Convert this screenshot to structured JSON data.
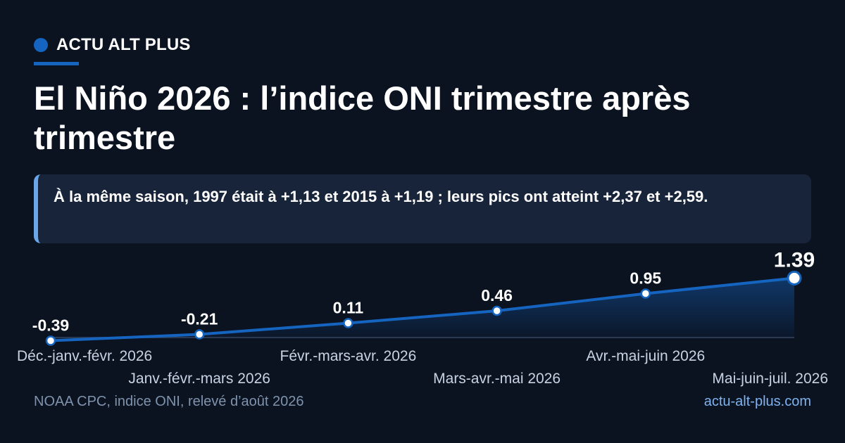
{
  "brand": {
    "name": "ACTU ALT PLUS",
    "accent_color": "#1565c0"
  },
  "title": "El Niño 2026 : l’indice ONI trimestre après trimestre",
  "callout": "À la même saison, 1997 était à +1,13 et 2015 à +1,19 ; leurs pics ont atteint +2,37 et +2,59.",
  "footer": {
    "source": "NOAA CPC, indice ONI, relevé d’août 2026",
    "site": "actu-alt-plus.com"
  },
  "chart_data": {
    "type": "line",
    "categories": [
      "Déc.-janv.-févr. 2026",
      "Janv.-févr.-mars 2026",
      "Févr.-mars-avr. 2026",
      "Mars-avr.-mai 2026",
      "Avr.-mai-juin 2026",
      "Mai-juin-juil. 2026"
    ],
    "values": [
      -0.39,
      -0.21,
      0.11,
      0.46,
      0.95,
      1.39
    ],
    "value_labels": [
      "-0.39",
      "-0.21",
      "0.11",
      "0.46",
      "0.95",
      "1.39"
    ],
    "ylim": [
      -0.5,
      1.5
    ],
    "grid": false,
    "area_fill": true,
    "line_color": "#1565c0",
    "highlight_last": true
  }
}
